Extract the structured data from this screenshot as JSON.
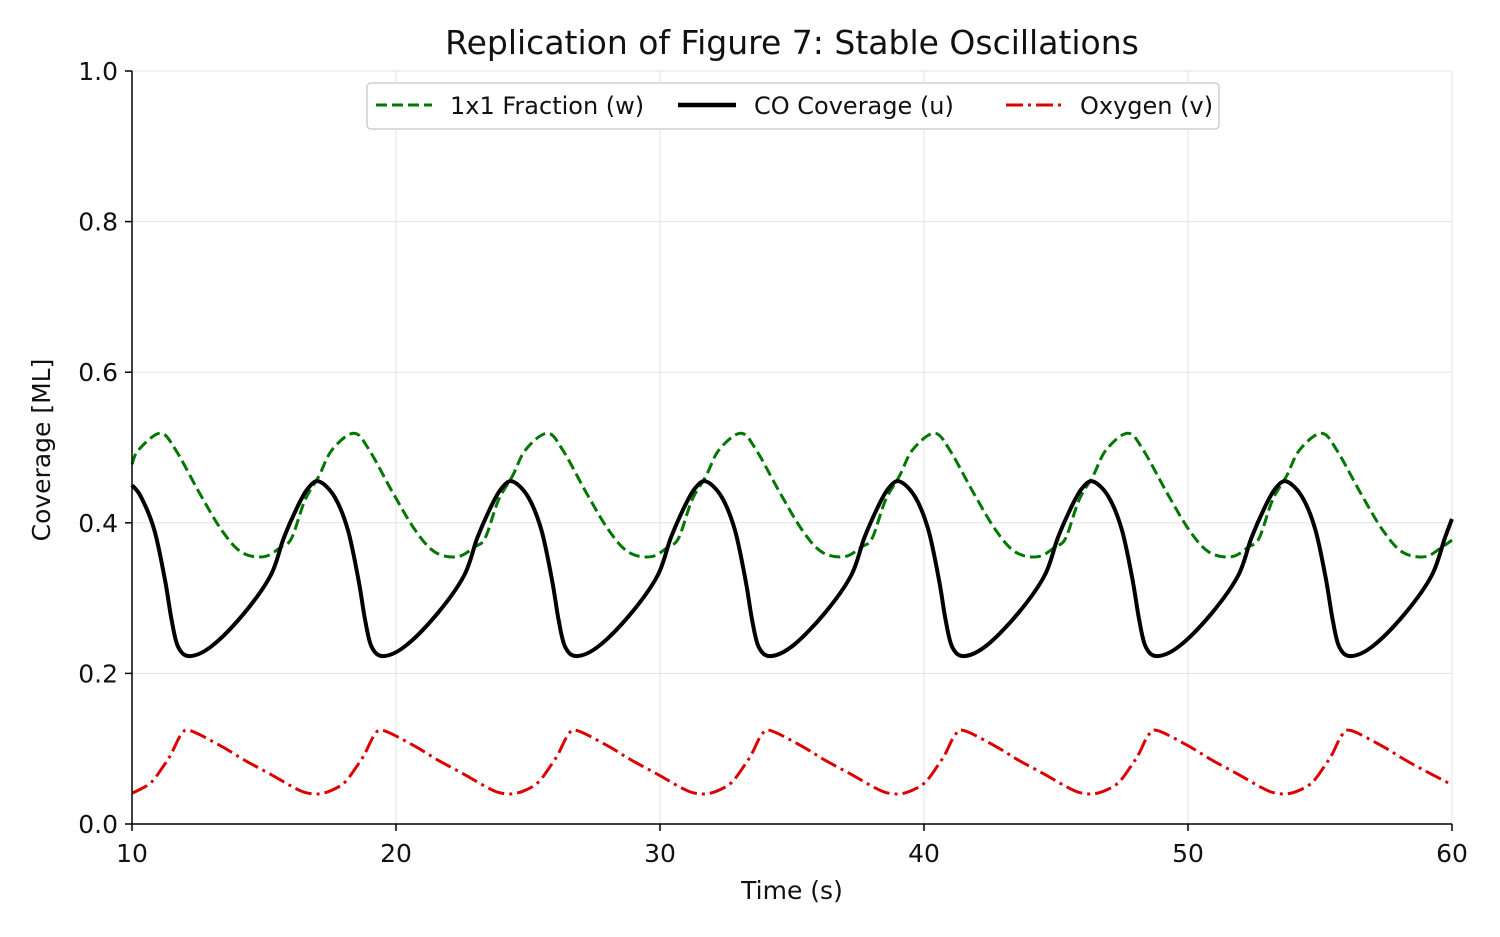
{
  "chart_data": {
    "type": "line",
    "title": "Replication of Figure 7: Stable Oscillations",
    "xlabel": "Time (s)",
    "ylabel": "Coverage [ML]",
    "xlim": [
      10,
      60
    ],
    "ylim": [
      0.0,
      1.0
    ],
    "xticks": [
      "10",
      "20",
      "30",
      "40",
      "50",
      "60"
    ],
    "yticks": [
      "0.0",
      "0.2",
      "0.4",
      "0.6",
      "0.8",
      "1.0"
    ],
    "grid": true,
    "legend_position": "top-center",
    "series": [
      {
        "name": "1x1 Fraction (w)",
        "color": "#007700",
        "style": "dashed",
        "points": [
          [
            10,
            0.478
          ],
          [
            10.25,
            0.497
          ],
          [
            11.07,
            0.519
          ],
          [
            11.65,
            0.497
          ],
          [
            12.55,
            0.44
          ],
          [
            13.4,
            0.39
          ],
          [
            14.15,
            0.361
          ],
          [
            15.0,
            0.355
          ],
          [
            15.65,
            0.368
          ],
          [
            16.05,
            0.38
          ],
          [
            16.55,
            0.43
          ],
          [
            17.08,
            0.462
          ],
          [
            17.58,
            0.497
          ],
          [
            18.4,
            0.519
          ],
          [
            18.98,
            0.497
          ],
          [
            19.88,
            0.44
          ],
          [
            20.73,
            0.39
          ],
          [
            21.48,
            0.361
          ],
          [
            22.33,
            0.355
          ],
          [
            22.98,
            0.368
          ],
          [
            23.38,
            0.38
          ],
          [
            23.88,
            0.43
          ],
          [
            24.41,
            0.462
          ],
          [
            24.91,
            0.497
          ],
          [
            25.73,
            0.519
          ],
          [
            26.31,
            0.497
          ],
          [
            27.21,
            0.44
          ],
          [
            28.06,
            0.39
          ],
          [
            28.81,
            0.361
          ],
          [
            29.66,
            0.355
          ],
          [
            30.31,
            0.368
          ],
          [
            30.71,
            0.38
          ],
          [
            31.21,
            0.43
          ],
          [
            31.74,
            0.462
          ],
          [
            32.24,
            0.497
          ],
          [
            33.06,
            0.519
          ],
          [
            33.64,
            0.497
          ],
          [
            34.54,
            0.44
          ],
          [
            35.39,
            0.39
          ],
          [
            36.14,
            0.361
          ],
          [
            36.99,
            0.355
          ],
          [
            37.64,
            0.368
          ],
          [
            38.04,
            0.38
          ],
          [
            38.54,
            0.43
          ],
          [
            39.07,
            0.462
          ],
          [
            39.57,
            0.497
          ],
          [
            40.39,
            0.519
          ],
          [
            40.97,
            0.497
          ],
          [
            41.87,
            0.44
          ],
          [
            42.72,
            0.39
          ],
          [
            43.47,
            0.361
          ],
          [
            44.32,
            0.355
          ],
          [
            44.97,
            0.368
          ],
          [
            45.37,
            0.38
          ],
          [
            45.87,
            0.43
          ],
          [
            46.4,
            0.462
          ],
          [
            46.9,
            0.497
          ],
          [
            47.72,
            0.519
          ],
          [
            48.3,
            0.497
          ],
          [
            49.2,
            0.44
          ],
          [
            50.05,
            0.39
          ],
          [
            50.8,
            0.361
          ],
          [
            51.65,
            0.355
          ],
          [
            52.3,
            0.368
          ],
          [
            52.7,
            0.38
          ],
          [
            53.2,
            0.43
          ],
          [
            53.73,
            0.462
          ],
          [
            54.23,
            0.497
          ],
          [
            55.05,
            0.519
          ],
          [
            55.63,
            0.497
          ],
          [
            56.53,
            0.44
          ],
          [
            57.38,
            0.39
          ],
          [
            58.13,
            0.361
          ],
          [
            58.98,
            0.355
          ],
          [
            59.63,
            0.368
          ],
          [
            60,
            0.377
          ]
        ]
      },
      {
        "name": "CO Coverage (u)",
        "color": "#000000",
        "style": "solid",
        "points": [
          [
            10,
            0.45
          ],
          [
            10.35,
            0.434
          ],
          [
            10.85,
            0.39
          ],
          [
            11.25,
            0.324
          ],
          [
            11.5,
            0.271
          ],
          [
            11.75,
            0.235
          ],
          [
            12.2,
            0.223
          ],
          [
            13.05,
            0.237
          ],
          [
            14.25,
            0.28
          ],
          [
            15.25,
            0.33
          ],
          [
            15.75,
            0.38
          ],
          [
            16.25,
            0.42
          ],
          [
            16.65,
            0.445
          ],
          [
            17.08,
            0.455
          ],
          [
            17.68,
            0.434
          ],
          [
            18.18,
            0.39
          ],
          [
            18.58,
            0.324
          ],
          [
            18.83,
            0.271
          ],
          [
            19.08,
            0.235
          ],
          [
            19.53,
            0.223
          ],
          [
            20.38,
            0.237
          ],
          [
            21.58,
            0.28
          ],
          [
            22.58,
            0.33
          ],
          [
            23.08,
            0.38
          ],
          [
            23.58,
            0.42
          ],
          [
            23.98,
            0.445
          ],
          [
            24.41,
            0.455
          ],
          [
            25.01,
            0.434
          ],
          [
            25.51,
            0.39
          ],
          [
            25.91,
            0.324
          ],
          [
            26.16,
            0.271
          ],
          [
            26.41,
            0.235
          ],
          [
            26.86,
            0.223
          ],
          [
            27.71,
            0.237
          ],
          [
            28.91,
            0.28
          ],
          [
            29.91,
            0.33
          ],
          [
            30.41,
            0.38
          ],
          [
            30.91,
            0.42
          ],
          [
            31.31,
            0.445
          ],
          [
            31.74,
            0.455
          ],
          [
            32.34,
            0.434
          ],
          [
            32.84,
            0.39
          ],
          [
            33.24,
            0.324
          ],
          [
            33.49,
            0.271
          ],
          [
            33.74,
            0.235
          ],
          [
            34.19,
            0.223
          ],
          [
            35.04,
            0.237
          ],
          [
            36.24,
            0.28
          ],
          [
            37.24,
            0.33
          ],
          [
            37.74,
            0.38
          ],
          [
            38.24,
            0.42
          ],
          [
            38.64,
            0.445
          ],
          [
            39.07,
            0.455
          ],
          [
            39.67,
            0.434
          ],
          [
            40.17,
            0.39
          ],
          [
            40.57,
            0.324
          ],
          [
            40.82,
            0.271
          ],
          [
            41.07,
            0.235
          ],
          [
            41.52,
            0.223
          ],
          [
            42.37,
            0.237
          ],
          [
            43.57,
            0.28
          ],
          [
            44.57,
            0.33
          ],
          [
            45.07,
            0.38
          ],
          [
            45.57,
            0.42
          ],
          [
            45.97,
            0.445
          ],
          [
            46.4,
            0.455
          ],
          [
            47.0,
            0.434
          ],
          [
            47.5,
            0.39
          ],
          [
            47.9,
            0.324
          ],
          [
            48.15,
            0.271
          ],
          [
            48.4,
            0.235
          ],
          [
            48.85,
            0.223
          ],
          [
            49.7,
            0.237
          ],
          [
            50.9,
            0.28
          ],
          [
            51.9,
            0.33
          ],
          [
            52.4,
            0.38
          ],
          [
            52.9,
            0.42
          ],
          [
            53.3,
            0.445
          ],
          [
            53.73,
            0.455
          ],
          [
            54.33,
            0.434
          ],
          [
            54.83,
            0.39
          ],
          [
            55.23,
            0.324
          ],
          [
            55.48,
            0.271
          ],
          [
            55.73,
            0.235
          ],
          [
            56.18,
            0.223
          ],
          [
            57.03,
            0.237
          ],
          [
            58.23,
            0.28
          ],
          [
            59.23,
            0.33
          ],
          [
            59.73,
            0.38
          ],
          [
            60,
            0.405
          ]
        ]
      },
      {
        "name": "Oxygen (v)",
        "color": "#dd0000",
        "style": "dashdot",
        "points": [
          [
            10,
            0.041
          ],
          [
            10.25,
            0.045
          ],
          [
            10.75,
            0.056
          ],
          [
            11.25,
            0.08
          ],
          [
            11.5,
            0.094
          ],
          [
            11.85,
            0.118
          ],
          [
            12.2,
            0.124
          ],
          [
            13.35,
            0.104
          ],
          [
            14.25,
            0.085
          ],
          [
            15.25,
            0.066
          ],
          [
            16.05,
            0.05
          ],
          [
            16.55,
            0.042
          ],
          [
            17.08,
            0.04
          ],
          [
            17.58,
            0.045
          ],
          [
            18.08,
            0.056
          ],
          [
            18.58,
            0.08
          ],
          [
            18.83,
            0.094
          ],
          [
            19.18,
            0.118
          ],
          [
            19.53,
            0.124
          ],
          [
            20.68,
            0.104
          ],
          [
            21.58,
            0.085
          ],
          [
            22.58,
            0.066
          ],
          [
            23.38,
            0.05
          ],
          [
            23.88,
            0.042
          ],
          [
            24.41,
            0.04
          ],
          [
            24.91,
            0.045
          ],
          [
            25.41,
            0.056
          ],
          [
            25.91,
            0.08
          ],
          [
            26.16,
            0.094
          ],
          [
            26.51,
            0.118
          ],
          [
            26.86,
            0.124
          ],
          [
            28.01,
            0.104
          ],
          [
            28.91,
            0.085
          ],
          [
            29.91,
            0.066
          ],
          [
            30.71,
            0.05
          ],
          [
            31.21,
            0.042
          ],
          [
            31.74,
            0.04
          ],
          [
            32.24,
            0.045
          ],
          [
            32.74,
            0.056
          ],
          [
            33.24,
            0.08
          ],
          [
            33.49,
            0.094
          ],
          [
            33.84,
            0.118
          ],
          [
            34.19,
            0.124
          ],
          [
            35.34,
            0.104
          ],
          [
            36.24,
            0.085
          ],
          [
            37.24,
            0.066
          ],
          [
            38.04,
            0.05
          ],
          [
            38.54,
            0.042
          ],
          [
            39.07,
            0.04
          ],
          [
            39.57,
            0.045
          ],
          [
            40.07,
            0.056
          ],
          [
            40.57,
            0.08
          ],
          [
            40.82,
            0.094
          ],
          [
            41.17,
            0.118
          ],
          [
            41.52,
            0.124
          ],
          [
            42.67,
            0.104
          ],
          [
            43.57,
            0.085
          ],
          [
            44.57,
            0.066
          ],
          [
            45.37,
            0.05
          ],
          [
            45.87,
            0.042
          ],
          [
            46.4,
            0.04
          ],
          [
            46.9,
            0.045
          ],
          [
            47.4,
            0.056
          ],
          [
            47.9,
            0.08
          ],
          [
            48.15,
            0.094
          ],
          [
            48.5,
            0.118
          ],
          [
            48.85,
            0.124
          ],
          [
            50.0,
            0.104
          ],
          [
            50.9,
            0.085
          ],
          [
            51.9,
            0.066
          ],
          [
            52.7,
            0.05
          ],
          [
            53.2,
            0.042
          ],
          [
            53.73,
            0.04
          ],
          [
            54.23,
            0.045
          ],
          [
            54.73,
            0.056
          ],
          [
            55.23,
            0.08
          ],
          [
            55.48,
            0.094
          ],
          [
            55.83,
            0.118
          ],
          [
            56.18,
            0.124
          ],
          [
            57.33,
            0.104
          ],
          [
            58.23,
            0.085
          ],
          [
            59.23,
            0.066
          ],
          [
            60,
            0.052
          ]
        ]
      }
    ]
  }
}
